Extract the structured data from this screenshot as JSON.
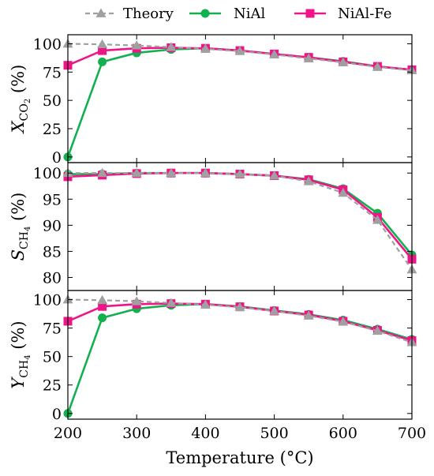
{
  "chart_data": {
    "type": "line",
    "x": [
      200,
      250,
      300,
      350,
      400,
      450,
      500,
      550,
      600,
      650,
      700
    ],
    "xlabel": "Temperature (°C)",
    "xlim": [
      200,
      700
    ],
    "xticks": [
      "200",
      "300",
      "400",
      "500",
      "600",
      "700"
    ],
    "legend": {
      "placement": "top",
      "entries": [
        {
          "name": "Theory",
          "color": "#a0a0a0",
          "marker": "triangle",
          "dash": true
        },
        {
          "name": "NiAl",
          "color": "#13b04f",
          "marker": "circle",
          "dash": false
        },
        {
          "name": "NiAl-Fe",
          "color": "#ef1487",
          "marker": "square",
          "dash": false
        }
      ]
    },
    "panels": [
      {
        "ylabel_main": "X",
        "ylabel_sub": "CO",
        "ylabel_subsub": "2",
        "ylabel_unit": " (%)",
        "ylim": [
          -5,
          108
        ],
        "yticks": [
          "0",
          "25",
          "50",
          "75",
          "100"
        ],
        "series": [
          {
            "name": "Theory",
            "values": [
              100,
              99.5,
              98.5,
              97,
              95.5,
              93.5,
              90.5,
              87,
              83.5,
              79.5,
              76.5
            ]
          },
          {
            "name": "NiAl",
            "values": [
              0,
              84,
              92,
              95,
              96,
              94,
              91,
              88,
              84.5,
              80,
              77
            ]
          },
          {
            "name": "NiAl-Fe",
            "values": [
              81,
              94,
              96,
              96.5,
              96,
              94,
              91,
              88,
              84,
              80,
              77
            ]
          }
        ]
      },
      {
        "ylabel_main": "S",
        "ylabel_sub": "CH",
        "ylabel_subsub": "4",
        "ylabel_unit": " (%)",
        "ylim": [
          77.5,
          102
        ],
        "yticks": [
          "80",
          "85",
          "90",
          "95",
          "100"
        ],
        "series": [
          {
            "name": "Theory",
            "values": [
              100,
              100,
              100,
              100,
              100,
              99.8,
              99.5,
              98.4,
              96.2,
              91,
              81.5
            ]
          },
          {
            "name": "NiAl",
            "values": [
              99.8,
              99.8,
              100,
              100,
              100,
              99.8,
              99.5,
              98.8,
              97,
              92.3,
              84.3
            ]
          },
          {
            "name": "NiAl-Fe",
            "values": [
              99.3,
              99.6,
              99.9,
              100,
              100,
              99.8,
              99.5,
              98.7,
              96.8,
              91.5,
              83.5
            ]
          }
        ]
      },
      {
        "ylabel_main": "Y",
        "ylabel_sub": "CH",
        "ylabel_subsub": "4",
        "ylabel_unit": " (%)",
        "ylim": [
          -5,
          108
        ],
        "yticks": [
          "0",
          "25",
          "50",
          "75",
          "100"
        ],
        "series": [
          {
            "name": "Theory",
            "values": [
              100,
              99.5,
              98.5,
              97,
              95.5,
              93.3,
              90,
              85.8,
              80.6,
              72.5,
              62.5
            ]
          },
          {
            "name": "NiAl",
            "values": [
              0,
              84,
              92,
              95,
              96,
              94,
              90.5,
              87,
              82,
              74,
              65
            ]
          },
          {
            "name": "NiAl-Fe",
            "values": [
              81,
              94,
              96,
              96.5,
              96,
              93.7,
              90,
              86.5,
              81,
              73,
              64
            ]
          }
        ]
      }
    ]
  }
}
